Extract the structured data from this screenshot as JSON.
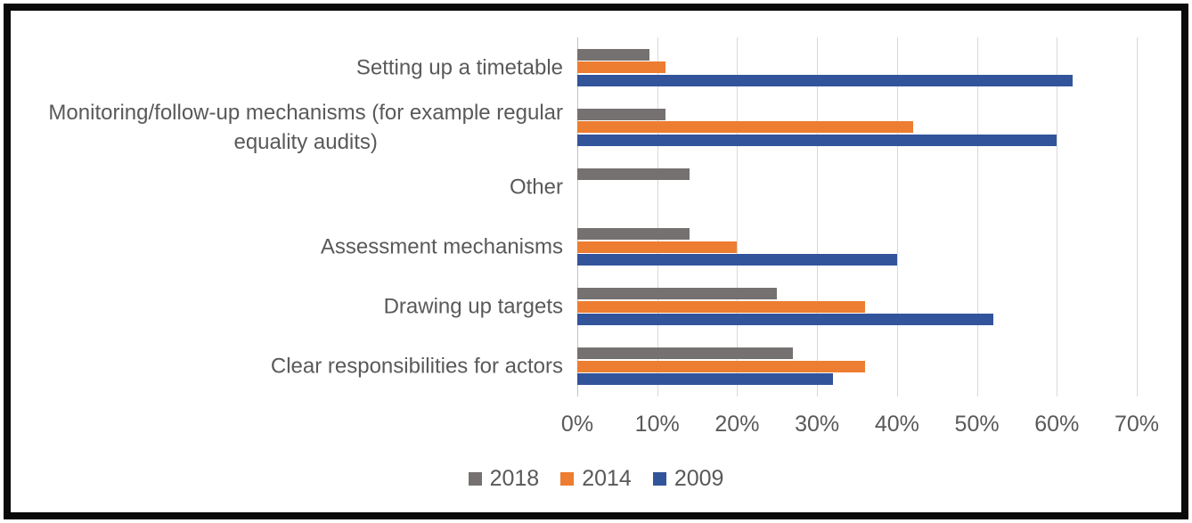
{
  "chart_data": {
    "type": "bar",
    "orientation": "horizontal",
    "title": "",
    "xlabel": "",
    "ylabel": "",
    "grid": true,
    "legend_position": "bottom",
    "categories": [
      "Setting up a timetable",
      "Monitoring/follow-up mechanisms (for example regular\nequality audits)",
      "Other",
      "Assessment mechanisms",
      "Drawing up targets",
      "Clear responsibilities for actors"
    ],
    "series": [
      {
        "name": "2018",
        "color": "#767171",
        "values": [
          9,
          11,
          14,
          14,
          25,
          27
        ]
      },
      {
        "name": "2014",
        "color": "#ED7D31",
        "values": [
          11,
          42,
          0,
          20,
          36,
          36
        ]
      },
      {
        "name": "2009",
        "color": "#32549B",
        "values": [
          62,
          60,
          0,
          40,
          52,
          32
        ]
      }
    ],
    "x_axis": {
      "min": 0,
      "max": 70,
      "tick_step": 10,
      "tick_labels": [
        "0%",
        "10%",
        "20%",
        "30%",
        "40%",
        "50%",
        "60%",
        "70%"
      ],
      "unit": "percent"
    },
    "legend_entries": [
      "2018",
      "2014",
      "2009"
    ]
  },
  "colors": {
    "background": "#FFFFFF",
    "frame_border": "#0A0A0A",
    "gridline": "#D9D9D9",
    "axis_line": "#C3C3C3",
    "text": "#595959"
  }
}
